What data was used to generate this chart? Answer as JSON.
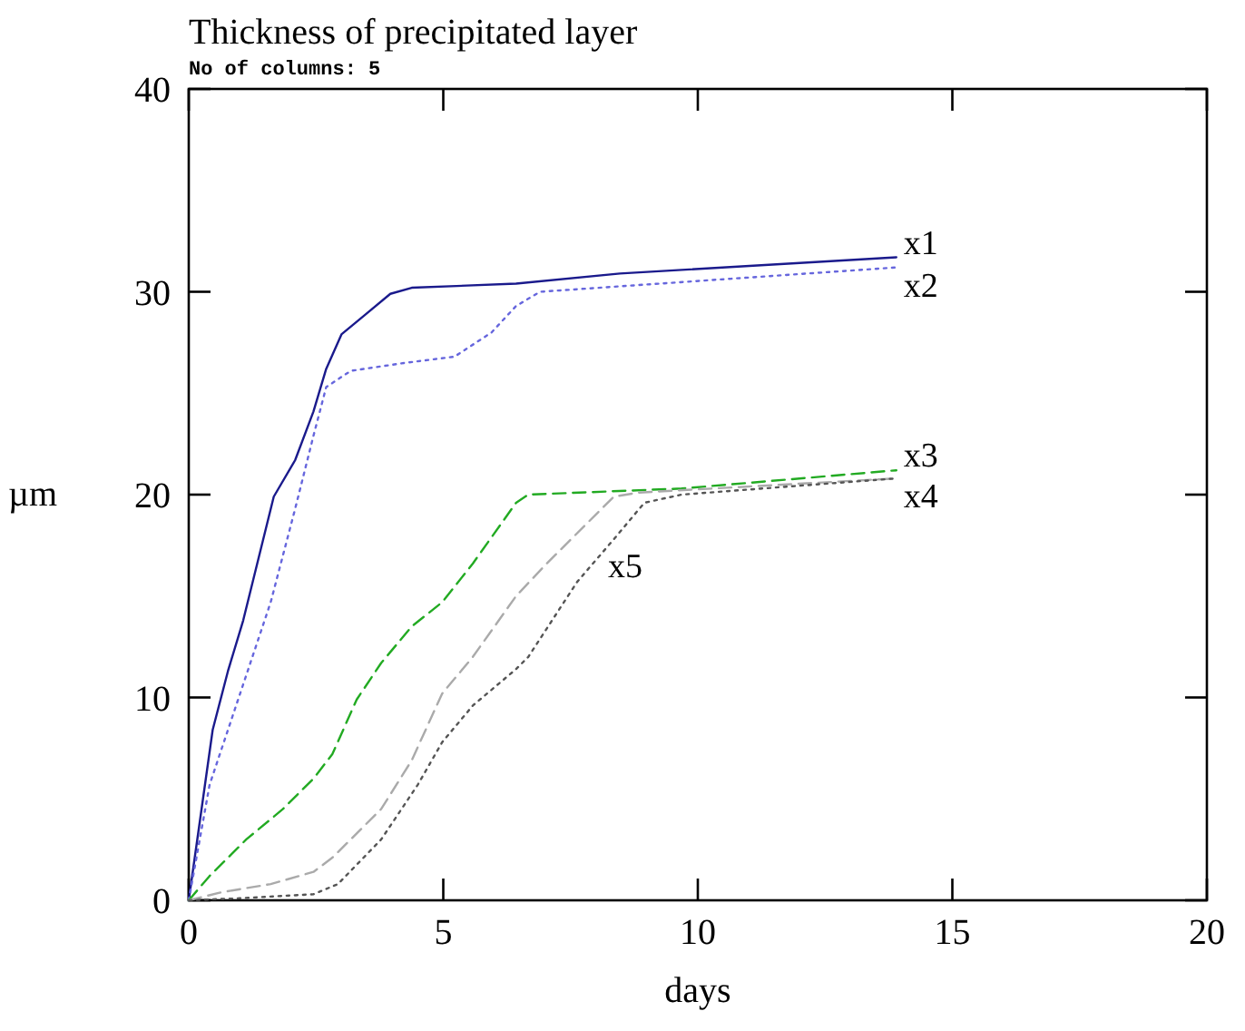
{
  "chart_data": {
    "type": "line",
    "title": "Thickness of precipitated layer",
    "subtitle": "No of columns: 5",
    "xlabel": "days",
    "ylabel": "µm",
    "xlim": [
      0,
      20
    ],
    "xticks": [
      0,
      5,
      10,
      15,
      20
    ],
    "ylim": [
      0,
      40
    ],
    "yticks": [
      0,
      10,
      20,
      30,
      40
    ],
    "grid": false,
    "marker": "none",
    "series": [
      {
        "name": "x1",
        "color": "#1a1a8c",
        "line_style": "solid",
        "x": [
          0,
          0.47,
          0.77,
          1.07,
          1.67,
          2.09,
          2.45,
          2.7,
          3.0,
          3.48,
          3.96,
          4.38,
          6.43,
          8.47,
          13.9
        ],
        "values": [
          0,
          8.4,
          11.3,
          13.8,
          19.9,
          21.7,
          24.1,
          26.2,
          27.9,
          28.9,
          29.9,
          30.2,
          30.4,
          30.9,
          31.7
        ]
      },
      {
        "name": "x2",
        "color": "#6666dd",
        "line_style": "dotted",
        "x": [
          0,
          0.41,
          1.01,
          1.61,
          2.09,
          2.45,
          2.7,
          3.18,
          4.26,
          5.22,
          5.95,
          6.43,
          6.9,
          13.9
        ],
        "values": [
          0,
          5.7,
          10.2,
          14.7,
          19.3,
          22.9,
          25.3,
          26.1,
          26.5,
          26.8,
          28.0,
          29.3,
          30.0,
          31.2
        ]
      },
      {
        "name": "x3",
        "color": "#22aa22",
        "line_style": "dashed",
        "x": [
          0,
          0.41,
          1.13,
          1.85,
          2.45,
          2.82,
          3.3,
          3.78,
          4.38,
          4.98,
          5.58,
          6.43,
          6.67,
          9.68,
          13.9
        ],
        "values": [
          0,
          1.2,
          3.0,
          4.5,
          6.0,
          7.2,
          9.9,
          11.7,
          13.5,
          14.7,
          16.6,
          19.6,
          20.0,
          20.3,
          21.2
        ]
      },
      {
        "name": "x4",
        "color": "#aaaaaa",
        "line_style": "dashed",
        "x": [
          0,
          0.65,
          1.61,
          2.45,
          2.82,
          3.78,
          4.38,
          4.98,
          5.58,
          6.43,
          7.03,
          8.35,
          8.83,
          13.9
        ],
        "values": [
          0,
          0.4,
          0.8,
          1.4,
          2.1,
          4.5,
          6.9,
          10.2,
          12.0,
          15.0,
          16.6,
          19.9,
          20.1,
          20.8
        ]
      },
      {
        "name": "x5",
        "color": "#555555",
        "line_style": "dotted",
        "x": [
          0,
          1.0,
          2.45,
          2.93,
          3.78,
          4.5,
          4.98,
          5.58,
          6.43,
          6.67,
          7.63,
          8.35,
          8.95,
          9.68,
          13.9
        ],
        "values": [
          0,
          0.1,
          0.3,
          0.8,
          3.0,
          5.7,
          7.8,
          9.6,
          11.4,
          12.0,
          15.7,
          17.8,
          19.6,
          20.0,
          20.8
        ]
      }
    ]
  }
}
